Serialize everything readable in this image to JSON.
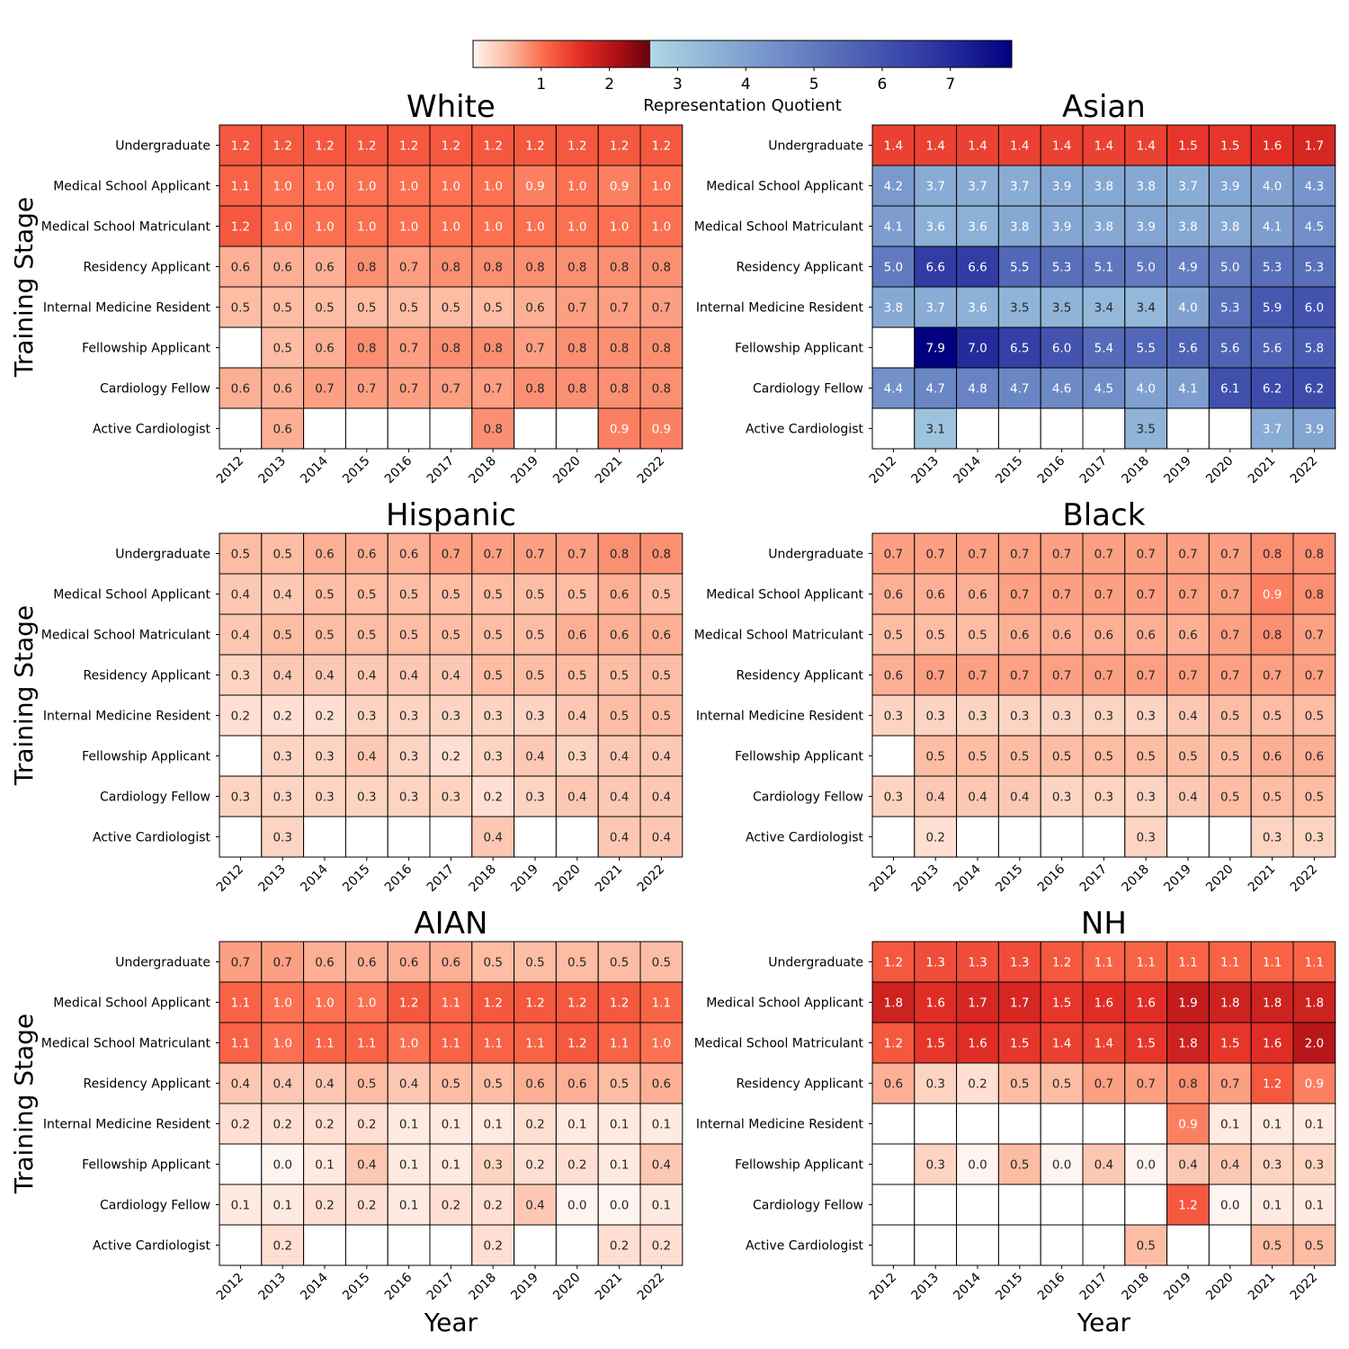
{
  "chart_data": {
    "type": "heatmap",
    "colorbar": {
      "label": "Representation Quotient",
      "ticks": [
        1,
        2,
        3,
        4,
        5,
        6,
        7
      ],
      "range": [
        0,
        7.9
      ],
      "split": 2.6,
      "low_colormap": "Reds (0 to 2.6)",
      "high_colormap": "Blues (2.6 to 7.9)",
      "low_colors": [
        "#fff5f0",
        "#fcbba1",
        "#fb6a4a",
        "#e32f27",
        "#b11218",
        "#67000d"
      ],
      "high_colors": [
        "#add8e6",
        "#8aaed5",
        "#6a85c4",
        "#4a5cb2",
        "#2a33a1",
        "#000080"
      ]
    },
    "xlabel": "Year",
    "ylabel": "Training Stage",
    "years": [
      "2012",
      "2013",
      "2014",
      "2015",
      "2016",
      "2017",
      "2018",
      "2019",
      "2020",
      "2021",
      "2022"
    ],
    "stages": [
      "Undergraduate",
      "Medical School Applicant",
      "Medical School Matriculant",
      "Residency Applicant",
      "Internal Medicine Resident",
      "Fellowship Applicant",
      "Cardiology Fellow",
      "Active Cardiologist"
    ],
    "panels": [
      {
        "title": "White",
        "values": [
          [
            1.2,
            1.2,
            1.2,
            1.2,
            1.2,
            1.2,
            1.2,
            1.2,
            1.2,
            1.2,
            1.2
          ],
          [
            1.1,
            1.0,
            1.0,
            1.0,
            1.0,
            1.0,
            1.0,
            0.9,
            1.0,
            0.9,
            1.0
          ],
          [
            1.2,
            1.0,
            1.0,
            1.0,
            1.0,
            1.0,
            1.0,
            1.0,
            1.0,
            1.0,
            1.0
          ],
          [
            0.6,
            0.6,
            0.6,
            0.8,
            0.7,
            0.8,
            0.8,
            0.8,
            0.8,
            0.8,
            0.8
          ],
          [
            0.5,
            0.5,
            0.5,
            0.5,
            0.5,
            0.5,
            0.5,
            0.6,
            0.7,
            0.7,
            0.7
          ],
          [
            null,
            0.5,
            0.6,
            0.8,
            0.7,
            0.8,
            0.8,
            0.7,
            0.8,
            0.8,
            0.8
          ],
          [
            0.6,
            0.6,
            0.7,
            0.7,
            0.7,
            0.7,
            0.7,
            0.8,
            0.8,
            0.8,
            0.8
          ],
          [
            null,
            0.6,
            null,
            null,
            null,
            null,
            0.8,
            null,
            null,
            0.9,
            0.9
          ]
        ]
      },
      {
        "title": "Asian",
        "values": [
          [
            1.4,
            1.4,
            1.4,
            1.4,
            1.4,
            1.4,
            1.4,
            1.5,
            1.5,
            1.6,
            1.7
          ],
          [
            4.2,
            3.7,
            3.7,
            3.7,
            3.9,
            3.8,
            3.8,
            3.7,
            3.9,
            4.0,
            4.3
          ],
          [
            4.1,
            3.6,
            3.6,
            3.8,
            3.9,
            3.8,
            3.9,
            3.8,
            3.8,
            4.1,
            4.5
          ],
          [
            5.0,
            6.6,
            6.6,
            5.5,
            5.3,
            5.1,
            5.0,
            4.9,
            5.0,
            5.3,
            5.3
          ],
          [
            3.8,
            3.7,
            3.6,
            3.5,
            3.5,
            3.4,
            3.4,
            4.0,
            5.3,
            5.9,
            6.0
          ],
          [
            null,
            7.9,
            7.0,
            6.5,
            6.0,
            5.4,
            5.5,
            5.6,
            5.6,
            5.6,
            5.8
          ],
          [
            4.4,
            4.7,
            4.8,
            4.7,
            4.6,
            4.5,
            4.0,
            4.1,
            6.1,
            6.2,
            6.2
          ],
          [
            null,
            3.1,
            null,
            null,
            null,
            null,
            3.5,
            null,
            null,
            3.7,
            3.9
          ]
        ]
      },
      {
        "title": "Hispanic",
        "values": [
          [
            0.5,
            0.5,
            0.6,
            0.6,
            0.6,
            0.7,
            0.7,
            0.7,
            0.7,
            0.8,
            0.8
          ],
          [
            0.4,
            0.4,
            0.5,
            0.5,
            0.5,
            0.5,
            0.5,
            0.5,
            0.5,
            0.6,
            0.5
          ],
          [
            0.4,
            0.5,
            0.5,
            0.5,
            0.5,
            0.5,
            0.5,
            0.5,
            0.6,
            0.6,
            0.6
          ],
          [
            0.3,
            0.4,
            0.4,
            0.4,
            0.4,
            0.4,
            0.5,
            0.5,
            0.5,
            0.5,
            0.5
          ],
          [
            0.2,
            0.2,
            0.2,
            0.3,
            0.3,
            0.3,
            0.3,
            0.3,
            0.4,
            0.5,
            0.5
          ],
          [
            null,
            0.3,
            0.3,
            0.4,
            0.3,
            0.2,
            0.3,
            0.4,
            0.3,
            0.4,
            0.4
          ],
          [
            0.3,
            0.3,
            0.3,
            0.3,
            0.3,
            0.3,
            0.2,
            0.3,
            0.4,
            0.4,
            0.4
          ],
          [
            null,
            0.3,
            null,
            null,
            null,
            null,
            0.4,
            null,
            null,
            0.4,
            0.4
          ]
        ]
      },
      {
        "title": "Black",
        "values": [
          [
            0.7,
            0.7,
            0.7,
            0.7,
            0.7,
            0.7,
            0.7,
            0.7,
            0.7,
            0.8,
            0.8
          ],
          [
            0.6,
            0.6,
            0.6,
            0.7,
            0.7,
            0.7,
            0.7,
            0.7,
            0.7,
            0.9,
            0.8
          ],
          [
            0.5,
            0.5,
            0.5,
            0.6,
            0.6,
            0.6,
            0.6,
            0.6,
            0.7,
            0.8,
            0.7
          ],
          [
            0.6,
            0.7,
            0.7,
            0.7,
            0.7,
            0.7,
            0.7,
            0.7,
            0.7,
            0.7,
            0.7
          ],
          [
            0.3,
            0.3,
            0.3,
            0.3,
            0.3,
            0.3,
            0.3,
            0.4,
            0.5,
            0.5,
            0.5
          ],
          [
            null,
            0.5,
            0.5,
            0.5,
            0.5,
            0.5,
            0.5,
            0.5,
            0.5,
            0.6,
            0.6
          ],
          [
            0.3,
            0.4,
            0.4,
            0.4,
            0.3,
            0.3,
            0.3,
            0.4,
            0.5,
            0.5,
            0.5
          ],
          [
            null,
            0.2,
            null,
            null,
            null,
            null,
            0.3,
            null,
            null,
            0.3,
            0.3
          ]
        ]
      },
      {
        "title": "AIAN",
        "values": [
          [
            0.7,
            0.7,
            0.6,
            0.6,
            0.6,
            0.6,
            0.5,
            0.5,
            0.5,
            0.5,
            0.5
          ],
          [
            1.1,
            1.0,
            1.0,
            1.0,
            1.2,
            1.1,
            1.2,
            1.2,
            1.2,
            1.2,
            1.1
          ],
          [
            1.1,
            1.0,
            1.1,
            1.1,
            1.0,
            1.1,
            1.1,
            1.1,
            1.2,
            1.1,
            1.0
          ],
          [
            0.4,
            0.4,
            0.4,
            0.5,
            0.4,
            0.5,
            0.5,
            0.6,
            0.6,
            0.5,
            0.6
          ],
          [
            0.2,
            0.2,
            0.2,
            0.2,
            0.1,
            0.1,
            0.1,
            0.2,
            0.1,
            0.1,
            0.1
          ],
          [
            null,
            0.0,
            0.1,
            0.4,
            0.1,
            0.1,
            0.3,
            0.2,
            0.2,
            0.1,
            0.4
          ],
          [
            0.1,
            0.1,
            0.2,
            0.2,
            0.1,
            0.2,
            0.2,
            0.4,
            0.0,
            0.0,
            0.1
          ],
          [
            null,
            0.2,
            null,
            null,
            null,
            null,
            0.2,
            null,
            null,
            0.2,
            0.2
          ]
        ]
      },
      {
        "title": "NH",
        "values": [
          [
            1.2,
            1.3,
            1.3,
            1.3,
            1.2,
            1.1,
            1.1,
            1.1,
            1.1,
            1.1,
            1.1
          ],
          [
            1.8,
            1.6,
            1.7,
            1.7,
            1.5,
            1.6,
            1.6,
            1.9,
            1.8,
            1.8,
            1.8
          ],
          [
            1.2,
            1.5,
            1.6,
            1.5,
            1.4,
            1.4,
            1.5,
            1.8,
            1.5,
            1.6,
            2.0
          ],
          [
            0.6,
            0.3,
            0.2,
            0.5,
            0.5,
            0.7,
            0.7,
            0.8,
            0.7,
            1.2,
            0.9
          ],
          [
            null,
            null,
            null,
            null,
            null,
            null,
            null,
            0.9,
            0.1,
            0.1,
            0.1
          ],
          [
            null,
            0.3,
            0.0,
            0.5,
            0.0,
            0.4,
            0.0,
            0.4,
            0.4,
            0.3,
            0.3
          ],
          [
            null,
            null,
            null,
            null,
            null,
            null,
            null,
            1.2,
            0.0,
            0.1,
            0.1
          ],
          [
            null,
            null,
            null,
            null,
            null,
            null,
            0.5,
            null,
            null,
            0.5,
            0.5
          ]
        ]
      }
    ]
  }
}
